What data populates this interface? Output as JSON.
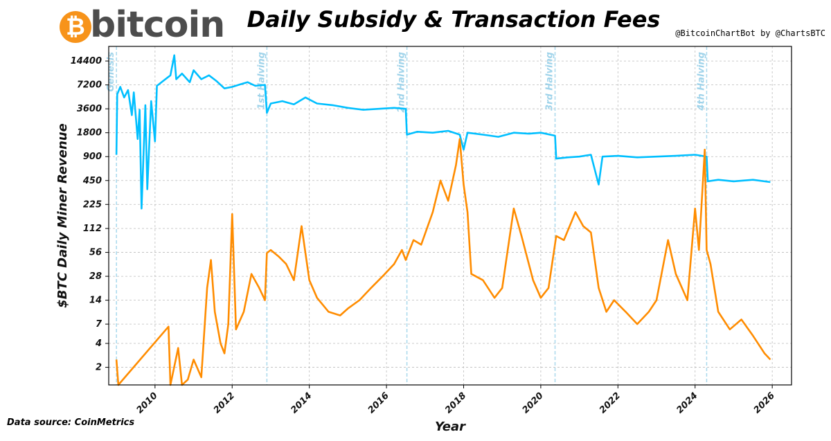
{
  "logo": {
    "symbol": "₿",
    "word": "bitcoin",
    "color": "#f7931a"
  },
  "title": "Daily Subsidy & Transaction Fees",
  "credit": "@BitcoinChartBot by @ChartsBTC",
  "source": "Data source: CoinMetrics",
  "chart_data": {
    "type": "line",
    "xlabel": "Year",
    "ylabel": "$BTC Daily Miner Revenue",
    "y_scale": "log",
    "xlim": [
      2008.8,
      2026.5
    ],
    "ylim": [
      1.2,
      22000
    ],
    "grid": true,
    "x_ticks": [
      2010,
      2012,
      2014,
      2016,
      2018,
      2020,
      2022,
      2024,
      2026
    ],
    "y_ticks": [
      {
        "label": "2",
        "value": 2
      },
      {
        "label": "4",
        "value": 4
      },
      {
        "label": "7",
        "value": 7
      },
      {
        "label": "14",
        "value": 14
      },
      {
        "label": "28",
        "value": 28
      },
      {
        "label": "56",
        "value": 56
      },
      {
        "label": "112",
        "value": 112
      },
      {
        "label": "225",
        "value": 225
      },
      {
        "label": "450",
        "value": 450
      },
      {
        "label": "900",
        "value": 900
      },
      {
        "label": "1800",
        "value": 1800
      },
      {
        "label": "3600",
        "value": 3600
      },
      {
        "label": "7200",
        "value": 7200
      },
      {
        "label": "14400",
        "value": 14400
      }
    ],
    "events": [
      {
        "label": "Genesis",
        "x": 2009.0
      },
      {
        "label": "1st Halving",
        "x": 2012.9
      },
      {
        "label": "2nd Halving",
        "x": 2016.53
      },
      {
        "label": "3rd Halving",
        "x": 2020.37
      },
      {
        "label": "4th Halving",
        "x": 2024.3
      }
    ],
    "event_color": "#a8d8ec",
    "series": [
      {
        "color": "#00bfff",
        "points": [
          [
            2009.0,
            950
          ],
          [
            2009.02,
            5500
          ],
          [
            2009.1,
            6800
          ],
          [
            2009.2,
            5000
          ],
          [
            2009.3,
            6200
          ],
          [
            2009.4,
            3000
          ],
          [
            2009.45,
            5800
          ],
          [
            2009.55,
            1500
          ],
          [
            2009.6,
            3500
          ],
          [
            2009.65,
            200
          ],
          [
            2009.75,
            4000
          ],
          [
            2009.8,
            350
          ],
          [
            2009.9,
            4500
          ],
          [
            2010.0,
            1400
          ],
          [
            2010.05,
            7000
          ],
          [
            2010.2,
            8000
          ],
          [
            2010.4,
            9500
          ],
          [
            2010.5,
            17000
          ],
          [
            2010.55,
            8500
          ],
          [
            2010.7,
            10000
          ],
          [
            2010.9,
            7800
          ],
          [
            2011.0,
            11000
          ],
          [
            2011.2,
            8500
          ],
          [
            2011.4,
            9500
          ],
          [
            2011.6,
            8000
          ],
          [
            2011.8,
            6500
          ],
          [
            2012.0,
            6800
          ],
          [
            2012.2,
            7300
          ],
          [
            2012.4,
            7800
          ],
          [
            2012.6,
            7000
          ],
          [
            2012.85,
            7200
          ],
          [
            2012.9,
            3200
          ],
          [
            2013.0,
            4200
          ],
          [
            2013.3,
            4500
          ],
          [
            2013.6,
            4100
          ],
          [
            2013.9,
            5000
          ],
          [
            2014.2,
            4200
          ],
          [
            2014.6,
            4000
          ],
          [
            2015.0,
            3700
          ],
          [
            2015.4,
            3500
          ],
          [
            2015.8,
            3600
          ],
          [
            2016.2,
            3700
          ],
          [
            2016.5,
            3600
          ],
          [
            2016.53,
            1700
          ],
          [
            2016.8,
            1850
          ],
          [
            2017.2,
            1800
          ],
          [
            2017.6,
            1900
          ],
          [
            2017.9,
            1700
          ],
          [
            2018.0,
            1100
          ],
          [
            2018.1,
            1800
          ],
          [
            2018.5,
            1700
          ],
          [
            2018.9,
            1600
          ],
          [
            2019.3,
            1800
          ],
          [
            2019.7,
            1750
          ],
          [
            2020.0,
            1800
          ],
          [
            2020.37,
            1650
          ],
          [
            2020.4,
            850
          ],
          [
            2020.7,
            880
          ],
          [
            2021.0,
            900
          ],
          [
            2021.3,
            950
          ],
          [
            2021.5,
            400
          ],
          [
            2021.6,
            900
          ],
          [
            2022.0,
            920
          ],
          [
            2022.5,
            880
          ],
          [
            2023.0,
            900
          ],
          [
            2023.5,
            920
          ],
          [
            2024.0,
            950
          ],
          [
            2024.3,
            900
          ],
          [
            2024.33,
            440
          ],
          [
            2024.6,
            460
          ],
          [
            2025.0,
            440
          ],
          [
            2025.5,
            460
          ],
          [
            2025.95,
            430
          ]
        ]
      },
      {
        "color": "#ff8c00",
        "points": [
          [
            2009.0,
            2.5
          ],
          [
            2009.05,
            1.2
          ],
          [
            2010.35,
            6.5
          ],
          [
            2010.4,
            1.2
          ],
          [
            2010.6,
            3.5
          ],
          [
            2010.7,
            1.2
          ],
          [
            2010.85,
            1.4
          ],
          [
            2011.0,
            2.5
          ],
          [
            2011.2,
            1.5
          ],
          [
            2011.35,
            20
          ],
          [
            2011.45,
            45
          ],
          [
            2011.55,
            10
          ],
          [
            2011.7,
            4
          ],
          [
            2011.8,
            3
          ],
          [
            2011.9,
            7
          ],
          [
            2012.0,
            170
          ],
          [
            2012.1,
            6
          ],
          [
            2012.3,
            10
          ],
          [
            2012.5,
            30
          ],
          [
            2012.7,
            20
          ],
          [
            2012.85,
            14
          ],
          [
            2012.9,
            55
          ],
          [
            2013.0,
            60
          ],
          [
            2013.2,
            50
          ],
          [
            2013.4,
            40
          ],
          [
            2013.6,
            25
          ],
          [
            2013.8,
            120
          ],
          [
            2014.0,
            25
          ],
          [
            2014.2,
            15
          ],
          [
            2014.5,
            10
          ],
          [
            2014.8,
            9
          ],
          [
            2015.0,
            11
          ],
          [
            2015.3,
            14
          ],
          [
            2015.6,
            20
          ],
          [
            2015.9,
            28
          ],
          [
            2016.2,
            40
          ],
          [
            2016.4,
            60
          ],
          [
            2016.5,
            45
          ],
          [
            2016.7,
            80
          ],
          [
            2016.9,
            70
          ],
          [
            2017.2,
            180
          ],
          [
            2017.4,
            450
          ],
          [
            2017.6,
            250
          ],
          [
            2017.8,
            700
          ],
          [
            2017.9,
            1500
          ],
          [
            2018.0,
            400
          ],
          [
            2018.1,
            180
          ],
          [
            2018.2,
            30
          ],
          [
            2018.5,
            25
          ],
          [
            2018.8,
            15
          ],
          [
            2019.0,
            20
          ],
          [
            2019.3,
            200
          ],
          [
            2019.5,
            90
          ],
          [
            2019.8,
            25
          ],
          [
            2020.0,
            15
          ],
          [
            2020.2,
            20
          ],
          [
            2020.4,
            90
          ],
          [
            2020.6,
            80
          ],
          [
            2020.9,
            180
          ],
          [
            2021.1,
            120
          ],
          [
            2021.3,
            100
          ],
          [
            2021.5,
            20
          ],
          [
            2021.7,
            10
          ],
          [
            2021.9,
            14
          ],
          [
            2022.2,
            10
          ],
          [
            2022.5,
            7
          ],
          [
            2022.8,
            10
          ],
          [
            2023.0,
            14
          ],
          [
            2023.3,
            80
          ],
          [
            2023.5,
            30
          ],
          [
            2023.8,
            14
          ],
          [
            2024.0,
            200
          ],
          [
            2024.1,
            60
          ],
          [
            2024.25,
            1100
          ],
          [
            2024.3,
            60
          ],
          [
            2024.4,
            40
          ],
          [
            2024.6,
            10
          ],
          [
            2024.9,
            6
          ],
          [
            2025.2,
            8
          ],
          [
            2025.5,
            5
          ],
          [
            2025.8,
            3
          ],
          [
            2025.95,
            2.5
          ]
        ]
      }
    ]
  }
}
